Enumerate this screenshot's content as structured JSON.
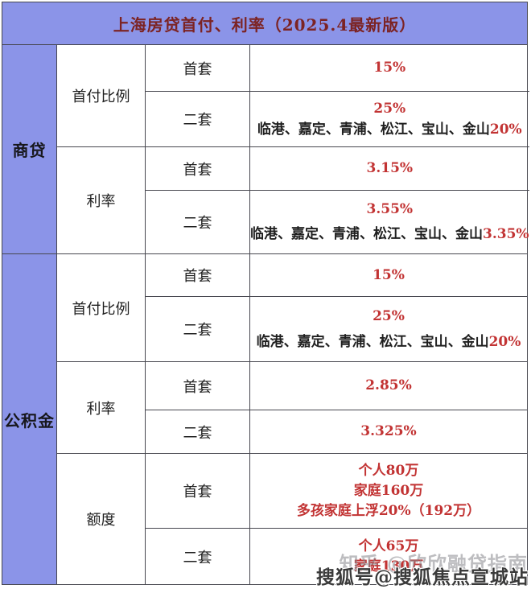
{
  "title": "上海房贷首付、利率（2025.4最新版）",
  "colors": {
    "header_bg": "#8b94e8",
    "side_bg": "#8b94e8",
    "border": "#47474f",
    "title_text": "#7c2323",
    "value_red": "#c23333",
    "text_black": "#1f1f1f"
  },
  "table": {
    "sections": [
      {
        "label": "商贷",
        "groups": [
          {
            "label": "首付比例",
            "rows": [
              {
                "type": "首套",
                "value": "15%"
              },
              {
                "type": "二套",
                "value": "25%",
                "note_black": "临港、嘉定、青浦、松江、宝山、金山",
                "note_red": "20%"
              }
            ]
          },
          {
            "label": "利率",
            "rows": [
              {
                "type": "首套",
                "value": "3.15%"
              },
              {
                "type": "二套",
                "value": "3.55%",
                "note_black": "临港、嘉定、青浦、松江、宝山、金山",
                "note_red": "3.35%"
              }
            ]
          }
        ]
      },
      {
        "label": "公积金",
        "groups": [
          {
            "label": "首付比例",
            "rows": [
              {
                "type": "首套",
                "value": "15%"
              },
              {
                "type": "二套",
                "value": "25%",
                "note_black": "临港、嘉定、青浦、松江、宝山、金山",
                "note_red": "20%"
              }
            ]
          },
          {
            "label": "利率",
            "rows": [
              {
                "type": "首套",
                "value": "2.85%"
              },
              {
                "type": "二套",
                "value": "3.325%"
              }
            ]
          },
          {
            "label": "额度",
            "rows": [
              {
                "type": "首套",
                "lines": [
                  "个人80万",
                  "家庭160万",
                  "多孩家庭上浮20%（192万）"
                ]
              },
              {
                "type": "二套",
                "lines": [
                  "个人65万",
                  "家庭130万"
                ]
              }
            ]
          }
        ]
      }
    ]
  },
  "watermarks": {
    "zhihu": "知乎 @欣欣融贷指南",
    "sohu": "搜狐号@搜狐焦点宣城站"
  }
}
